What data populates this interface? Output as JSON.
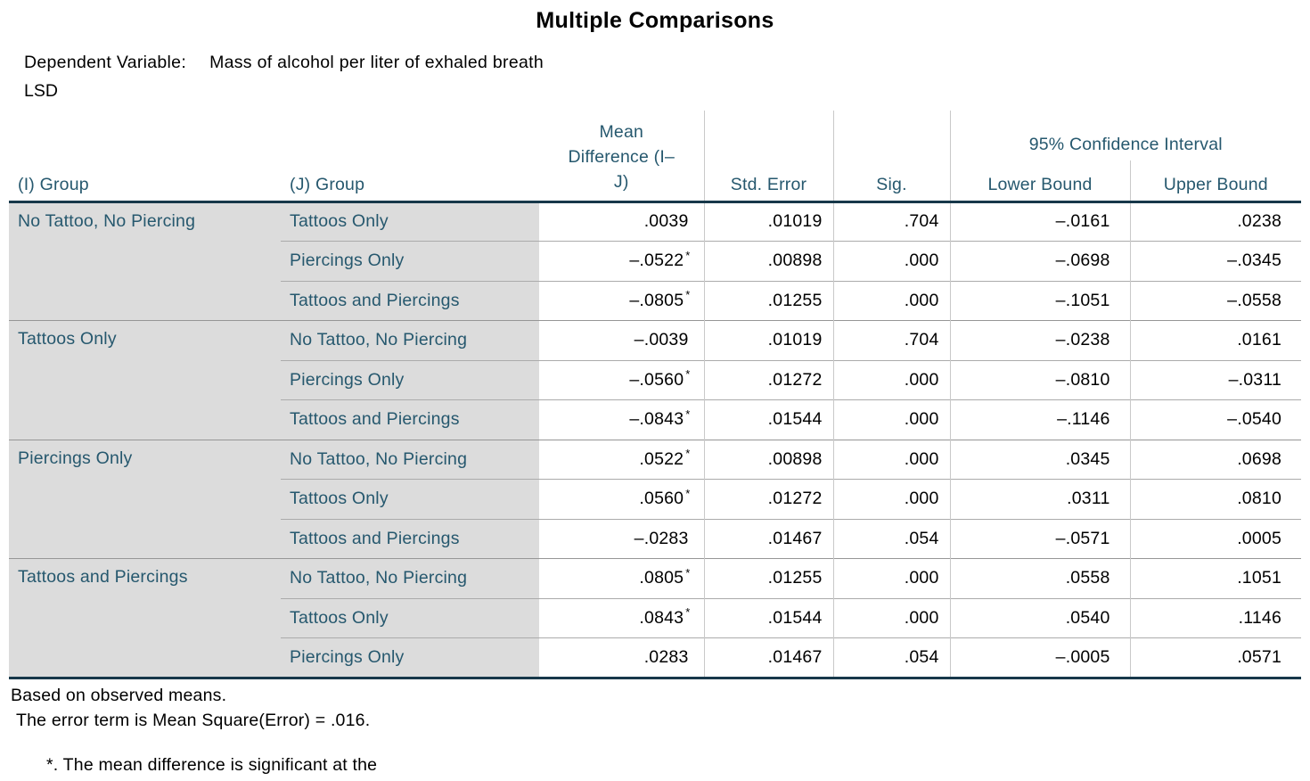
{
  "chart_data": {
    "type": "table",
    "title": "Multiple Comparisons",
    "dependent_variable_label": "Dependent Variable:",
    "dependent_variable_value": "Mass of alcohol per liter of exhaled breath",
    "method": "LSD",
    "colors": {
      "header_text": "#26586E",
      "label_background": "#dcdcdc",
      "heavy_rule": "#17384A",
      "light_rule": "#c9c9c9"
    },
    "col_headers": {
      "i_group": "(I) Group",
      "j_group": "(J) Group",
      "mean_diff": "Mean Difference (I–J)",
      "std_error": "Std. Error",
      "sig": "Sig.",
      "ci": "95% Confidence Interval",
      "lower": "Lower Bound",
      "upper": "Upper Bound"
    },
    "groups": [
      {
        "i_group": "No Tattoo, No Piercing",
        "comparisons": [
          {
            "j_group": "Tattoos Only",
            "mean_diff": ".0039",
            "star": "",
            "std_error": ".01019",
            "sig": ".704",
            "lower": "–.0161",
            "upper": ".0238"
          },
          {
            "j_group": "Piercings Only",
            "mean_diff": "–.0522",
            "star": "*",
            "std_error": ".00898",
            "sig": ".000",
            "lower": "–.0698",
            "upper": "–.0345"
          },
          {
            "j_group": "Tattoos and Piercings",
            "mean_diff": "–.0805",
            "star": "*",
            "std_error": ".01255",
            "sig": ".000",
            "lower": "–.1051",
            "upper": "–.0558"
          }
        ]
      },
      {
        "i_group": "Tattoos Only",
        "comparisons": [
          {
            "j_group": "No Tattoo, No Piercing",
            "mean_diff": "–.0039",
            "star": "",
            "std_error": ".01019",
            "sig": ".704",
            "lower": "–.0238",
            "upper": ".0161"
          },
          {
            "j_group": "Piercings Only",
            "mean_diff": "–.0560",
            "star": "*",
            "std_error": ".01272",
            "sig": ".000",
            "lower": "–.0810",
            "upper": "–.0311"
          },
          {
            "j_group": "Tattoos and Piercings",
            "mean_diff": "–.0843",
            "star": "*",
            "std_error": ".01544",
            "sig": ".000",
            "lower": "–.1146",
            "upper": "–.0540"
          }
        ]
      },
      {
        "i_group": "Piercings Only",
        "comparisons": [
          {
            "j_group": "No Tattoo, No Piercing",
            "mean_diff": ".0522",
            "star": "*",
            "std_error": ".00898",
            "sig": ".000",
            "lower": ".0345",
            "upper": ".0698"
          },
          {
            "j_group": "Tattoos Only",
            "mean_diff": ".0560",
            "star": "*",
            "std_error": ".01272",
            "sig": ".000",
            "lower": ".0311",
            "upper": ".0810"
          },
          {
            "j_group": "Tattoos and Piercings",
            "mean_diff": "–.0283",
            "star": "",
            "std_error": ".01467",
            "sig": ".054",
            "lower": "–.0571",
            "upper": ".0005"
          }
        ]
      },
      {
        "i_group": "Tattoos and Piercings",
        "comparisons": [
          {
            "j_group": "No Tattoo, No Piercing",
            "mean_diff": ".0805",
            "star": "*",
            "std_error": ".01255",
            "sig": ".000",
            "lower": ".0558",
            "upper": ".1051"
          },
          {
            "j_group": "Tattoos Only",
            "mean_diff": ".0843",
            "star": "*",
            "std_error": ".01544",
            "sig": ".000",
            "lower": ".0540",
            "upper": ".1146"
          },
          {
            "j_group": "Piercings Only",
            "mean_diff": ".0283",
            "star": "",
            "std_error": ".01467",
            "sig": ".054",
            "lower": "–.0005",
            "upper": ".0571"
          }
        ]
      }
    ],
    "footnotes": {
      "line1": "Based on observed means.",
      "line2": "The error term is Mean Square(Error) = .016.",
      "sig_note": "*. The mean difference is significant at the"
    }
  }
}
